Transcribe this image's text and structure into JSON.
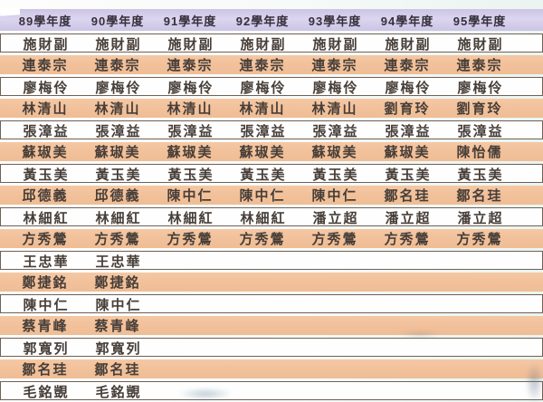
{
  "table": {
    "columns": [
      "89學年度",
      "90學年度",
      "91學年度",
      "92學年度",
      "93學年度",
      "94學年度",
      "95學年度"
    ],
    "rows": [
      [
        "施財副",
        "施財副",
        "施財副",
        "施財副",
        "施財副",
        "施財副",
        "施財副"
      ],
      [
        "連泰宗",
        "連泰宗",
        "連泰宗",
        "連泰宗",
        "連泰宗",
        "連泰宗",
        "連泰宗"
      ],
      [
        "廖梅伶",
        "廖梅伶",
        "廖梅伶",
        "廖梅伶",
        "廖梅伶",
        "廖梅伶",
        "廖梅伶"
      ],
      [
        "林清山",
        "林清山",
        "林清山",
        "林清山",
        "林清山",
        "劉育玲",
        "劉育玲"
      ],
      [
        "張漳益",
        "張漳益",
        "張漳益",
        "張漳益",
        "張漳益",
        "張漳益",
        "張漳益"
      ],
      [
        "蘇琡美",
        "蘇琡美",
        "蘇琡美",
        "蘇琡美",
        "蘇琡美",
        "蘇琡美",
        "陳怡儒"
      ],
      [
        "黃玉美",
        "黃玉美",
        "黃玉美",
        "黃玉美",
        "黃玉美",
        "黃玉美",
        "黃玉美"
      ],
      [
        "邱德義",
        "邱德義",
        "陳中仁",
        "陳中仁",
        "陳中仁",
        "鄒名珪",
        "鄒名珪"
      ],
      [
        "林細紅",
        "林細紅",
        "林細紅",
        "林細紅",
        "潘立超",
        "潘立超",
        "潘立超"
      ],
      [
        "方秀鶯",
        "方秀鶯",
        "方秀鶯",
        "方秀鶯",
        "方秀鶯",
        "方秀鶯",
        "方秀鶯"
      ],
      [
        "王忠華",
        "王忠華",
        "",
        "",
        "",
        "",
        ""
      ],
      [
        "鄭捷銘",
        "鄭捷銘",
        "",
        "",
        "",
        "",
        ""
      ],
      [
        "陳中仁",
        "陳中仁",
        "",
        "",
        "",
        "",
        ""
      ],
      [
        "蔡青峰",
        "蔡青峰",
        "",
        "",
        "",
        "",
        ""
      ],
      [
        "郭寬列",
        "郭寬列",
        "",
        "",
        "",
        "",
        ""
      ],
      [
        "鄒名珪",
        "鄒名珪",
        "",
        "",
        "",
        "",
        ""
      ],
      [
        "毛銘覬",
        "毛銘覬",
        "",
        "",
        "",
        "",
        ""
      ]
    ]
  },
  "colors": {
    "header_bg_dark": "#ccc4e5",
    "header_bg_light": "#dbd5ef",
    "header_text": "#362f3b",
    "row_peach": "#f2c29c",
    "row_white": "#fefefe",
    "row_border": "#6f6157",
    "cell_text": "#473e38"
  }
}
